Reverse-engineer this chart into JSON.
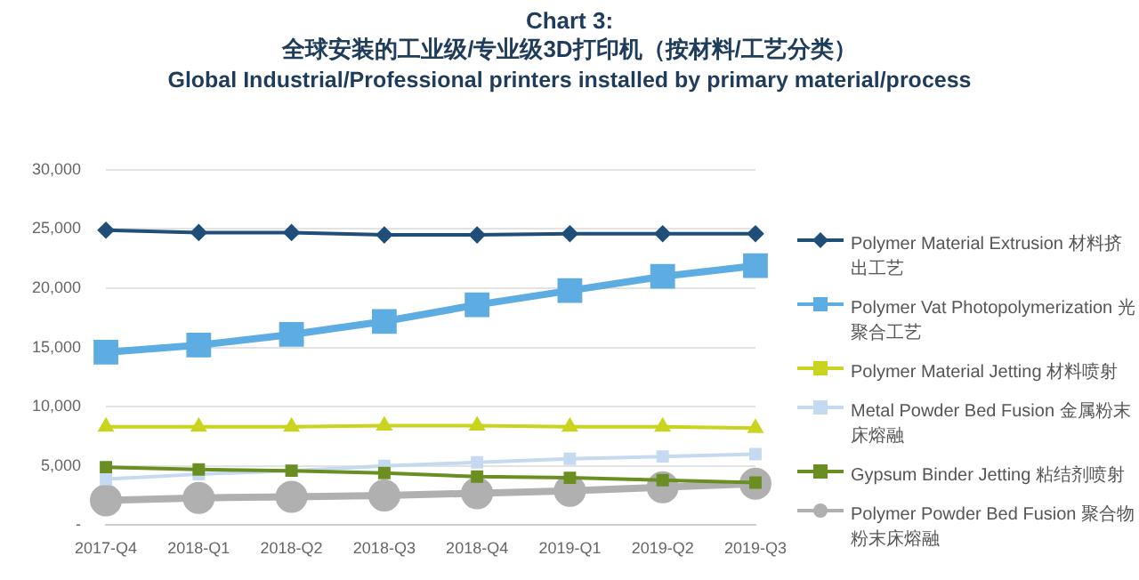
{
  "chart_data": {
    "type": "line",
    "title": "Chart 3:\n全球安装的工业级/专业级3D打印机（按材料/工艺分类）",
    "subtitle": "Global Industrial/Professional printers installed by primary material/process",
    "categories": [
      "2017-Q4",
      "2018-Q1",
      "2018-Q2",
      "2018-Q3",
      "2018-Q4",
      "2019-Q1",
      "2019-Q2",
      "2019-Q3"
    ],
    "series": [
      {
        "name": "Polymer Material Extrusion 材料挤出工艺",
        "color": "#1f4e79",
        "marker": "diamond",
        "values": [
          24900,
          24700,
          24700,
          24500,
          24500,
          24600,
          24600,
          24600
        ]
      },
      {
        "name": "Polymer Vat Photopolymerization 光聚合工艺",
        "color": "#5dade2",
        "marker": "square",
        "values": [
          14600,
          15200,
          16100,
          17200,
          18600,
          19800,
          21000,
          21900
        ]
      },
      {
        "name": "Polymer Material Jetting 材料喷射",
        "color": "#c8d41e",
        "marker": "triangle",
        "values": [
          8300,
          8300,
          8300,
          8400,
          8400,
          8300,
          8300,
          8200
        ]
      },
      {
        "name": "Metal Powder Bed Fusion 金属粉末床熔融",
        "color": "#c5daf0",
        "marker": "square",
        "values": [
          3900,
          4300,
          4600,
          5000,
          5300,
          5600,
          5800,
          6000
        ]
      },
      {
        "name": "Gypsum Binder Jetting 粘结剂喷射",
        "color": "#6b8e23",
        "marker": "square",
        "values": [
          4900,
          4700,
          4600,
          4400,
          4100,
          4000,
          3800,
          3600
        ]
      },
      {
        "name": "Polymer Powder Bed Fusion 聚合物粉末床熔融",
        "color": "#b0b0b0",
        "marker": "circle",
        "values": [
          2100,
          2300,
          2400,
          2500,
          2700,
          2900,
          3200,
          3500
        ]
      }
    ],
    "ylim": [
      0,
      30000
    ],
    "yticks": [
      {
        "value": 0,
        "label": "-"
      },
      {
        "value": 5000,
        "label": "5,000"
      },
      {
        "value": 10000,
        "label": "10,000"
      },
      {
        "value": 15000,
        "label": "15,000"
      },
      {
        "value": 20000,
        "label": "20,000"
      },
      {
        "value": 25000,
        "label": "25,000"
      },
      {
        "value": 30000,
        "label": "30,000"
      }
    ],
    "grid": "y",
    "legend": "right",
    "line_style": "solid"
  }
}
